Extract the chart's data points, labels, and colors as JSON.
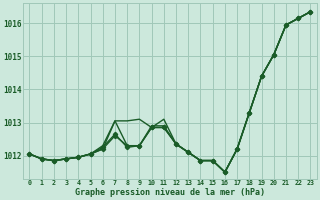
{
  "background_color": "#cce8dc",
  "grid_color": "#a0c8b8",
  "line_color": "#1a5c28",
  "xlabel": "Graphe pression niveau de la mer (hPa)",
  "xlim": [
    -0.5,
    23.5
  ],
  "ylim": [
    1011.3,
    1016.6
  ],
  "yticks": [
    1012,
    1013,
    1014,
    1015,
    1016
  ],
  "xticks": [
    0,
    1,
    2,
    3,
    4,
    5,
    6,
    7,
    8,
    9,
    10,
    11,
    12,
    13,
    14,
    15,
    16,
    17,
    18,
    19,
    20,
    21,
    22,
    23
  ],
  "series": [
    {
      "y": [
        1012.05,
        1011.9,
        1011.85,
        1011.9,
        1011.95,
        1012.05,
        1012.2,
        1013.05,
        1013.05,
        1013.1,
        1012.85,
        1013.1,
        1012.35,
        1012.1,
        1011.85,
        1011.85,
        1011.5,
        1012.2,
        1013.3,
        1014.4,
        1015.05,
        1015.95,
        1016.15,
        1016.35
      ],
      "marker": false,
      "linewidth": 1.0
    },
    {
      "y": [
        1012.05,
        1011.9,
        1011.85,
        1011.9,
        1011.95,
        1012.05,
        1012.25,
        1012.65,
        1012.25,
        1012.3,
        1012.85,
        1012.85,
        1012.35,
        1012.1,
        1011.85,
        1011.85,
        1011.5,
        1012.2,
        1013.3,
        1014.4,
        1015.05,
        1015.95,
        1016.15,
        1016.35
      ],
      "marker": true,
      "linewidth": 1.0
    },
    {
      "y": [
        1012.05,
        1011.9,
        1011.85,
        1011.9,
        1011.95,
        1012.05,
        1012.3,
        1013.05,
        1012.3,
        1012.3,
        1012.9,
        1012.9,
        1012.35,
        1012.1,
        1011.85,
        1011.85,
        1011.5,
        1012.2,
        1013.3,
        1014.4,
        1015.05,
        1015.95,
        1016.15,
        1016.35
      ],
      "marker": false,
      "linewidth": 1.0
    },
    {
      "y": [
        1012.05,
        1011.9,
        1011.85,
        1011.9,
        1011.95,
        1012.05,
        1012.2,
        1012.6,
        1012.3,
        1012.3,
        1012.85,
        1012.85,
        1012.35,
        1012.1,
        1011.85,
        1011.85,
        1011.5,
        1012.2,
        1013.3,
        1014.4,
        1015.05,
        1015.95,
        1016.15,
        1016.35
      ],
      "marker": true,
      "linewidth": 1.0
    }
  ]
}
